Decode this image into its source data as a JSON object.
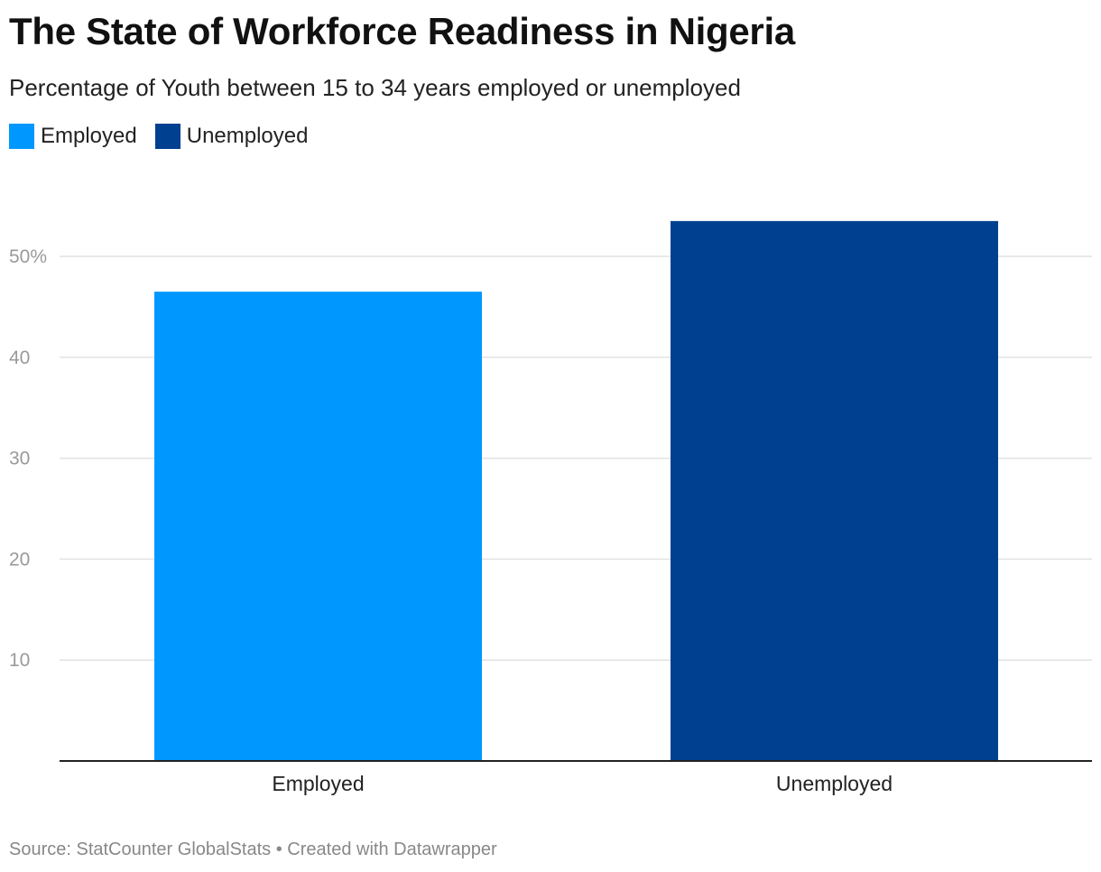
{
  "title": "The State of Workforce Readiness in Nigeria",
  "subtitle": "Percentage of Youth between 15 to 34 years employed or unemployed",
  "legend": [
    {
      "label": "Employed",
      "color": "#0098ff"
    },
    {
      "label": "Unemployed",
      "color": "#004090"
    }
  ],
  "footer": {
    "source": "Source: StatCounter GlobalStats",
    "separator": "•",
    "credit": "Created with Datawrapper"
  },
  "chart_data": {
    "type": "bar",
    "categories": [
      "Employed",
      "Unemployed"
    ],
    "values": [
      46.5,
      53.5
    ],
    "colors": [
      "#0098ff",
      "#004090"
    ],
    "title": "The State of Workforce Readiness in Nigeria",
    "subtitle": "Percentage of Youth between 15 to 34 years employed or unemployed",
    "xlabel": "",
    "ylabel": "",
    "ylim": [
      0,
      53.5
    ],
    "yticks": [
      10,
      20,
      30,
      40,
      50
    ],
    "ytick_labels": [
      "10",
      "20",
      "30",
      "40",
      "50%"
    ],
    "grid": true,
    "legend_position": "top-left",
    "source": "StatCounter GlobalStats"
  }
}
